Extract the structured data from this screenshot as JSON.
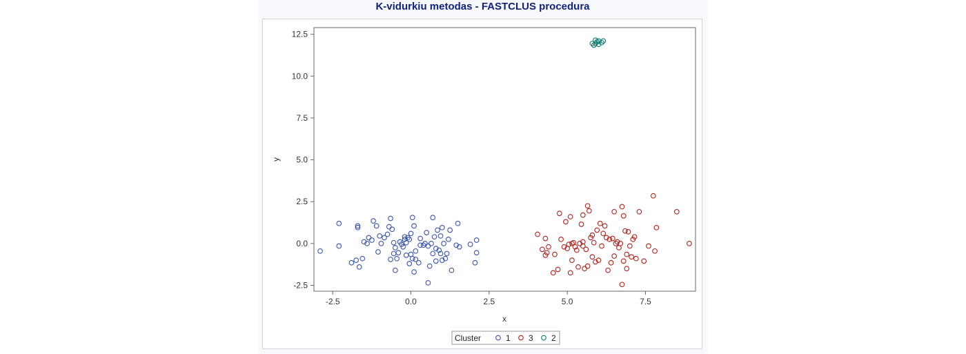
{
  "chart_data": {
    "type": "scatter",
    "title": "K-vidurkiu metodas - FASTCLUS procedura",
    "xlabel": "x",
    "ylabel": "y",
    "xlim": [
      -3.1,
      9.1
    ],
    "ylim": [
      -2.85,
      12.9
    ],
    "xticks": [
      -2.5,
      0.0,
      2.5,
      5.0,
      7.5
    ],
    "yticks": [
      -2.5,
      0.0,
      2.5,
      5.0,
      7.5,
      10.0,
      12.5
    ],
    "xtick_labels": [
      "-2.5",
      "0.0",
      "2.5",
      "5.0",
      "7.5"
    ],
    "ytick_labels": [
      "-2.5",
      "0.0",
      "2.5",
      "5.0",
      "7.5",
      "10.0",
      "12.5"
    ],
    "grid": false,
    "legend": {
      "title": "Cluster",
      "position": "bottom-center",
      "entries": [
        "1",
        "3",
        "2"
      ]
    },
    "series": [
      {
        "name": "1",
        "color": "#3a53a4",
        "marker": "circle-open",
        "points": [
          [
            -2.9,
            -0.45
          ],
          [
            -2.3,
            1.2
          ],
          [
            -2.3,
            -0.15
          ],
          [
            -1.9,
            -1.15
          ],
          [
            -1.75,
            -1.0
          ],
          [
            -1.7,
            0.95
          ],
          [
            -1.7,
            1.05
          ],
          [
            -1.65,
            -1.4
          ],
          [
            -1.55,
            -0.9
          ],
          [
            -1.5,
            0.1
          ],
          [
            -1.4,
            0.0
          ],
          [
            -1.35,
            0.35
          ],
          [
            -1.25,
            0.2
          ],
          [
            -1.2,
            1.35
          ],
          [
            -1.1,
            1.05
          ],
          [
            -1.05,
            -0.5
          ],
          [
            -1.0,
            0.45
          ],
          [
            -0.95,
            0.0
          ],
          [
            -0.85,
            0.35
          ],
          [
            -0.75,
            0.55
          ],
          [
            -0.7,
            1.0
          ],
          [
            -0.65,
            1.5
          ],
          [
            -0.65,
            -0.95
          ],
          [
            -0.6,
            0.85
          ],
          [
            -0.55,
            -0.6
          ],
          [
            -0.55,
            0.05
          ],
          [
            -0.5,
            -1.6
          ],
          [
            -0.5,
            -0.25
          ],
          [
            -0.45,
            -0.9
          ],
          [
            -0.4,
            -0.55
          ],
          [
            -0.35,
            0.1
          ],
          [
            -0.3,
            -0.05
          ],
          [
            -0.25,
            -0.2
          ],
          [
            -0.2,
            0.25
          ],
          [
            -0.2,
            0.4
          ],
          [
            -0.15,
            0.05
          ],
          [
            -0.15,
            -0.7
          ],
          [
            -0.1,
            0.35
          ],
          [
            -0.05,
            0.25
          ],
          [
            -0.05,
            -1.2
          ],
          [
            0.0,
            0.6
          ],
          [
            0.0,
            -0.65
          ],
          [
            0.05,
            -0.9
          ],
          [
            0.05,
            1.55
          ],
          [
            0.1,
            -1.7
          ],
          [
            0.1,
            1.05
          ],
          [
            0.15,
            -0.95
          ],
          [
            0.15,
            -0.45
          ],
          [
            0.25,
            -1.15
          ],
          [
            0.3,
            0.3
          ],
          [
            0.3,
            -0.1
          ],
          [
            0.4,
            -0.1
          ],
          [
            0.45,
            0.0
          ],
          [
            0.5,
            0.65
          ],
          [
            0.55,
            -0.15
          ],
          [
            0.55,
            -2.35
          ],
          [
            0.6,
            -1.35
          ],
          [
            0.65,
            0.0
          ],
          [
            0.7,
            -0.6
          ],
          [
            0.7,
            1.55
          ],
          [
            0.75,
            0.4
          ],
          [
            0.8,
            -0.3
          ],
          [
            0.8,
            -1.05
          ],
          [
            0.85,
            0.8
          ],
          [
            0.9,
            -0.4
          ],
          [
            0.95,
            0.45
          ],
          [
            0.95,
            -0.6
          ],
          [
            1.0,
            0.95
          ],
          [
            1.0,
            -1.0
          ],
          [
            1.05,
            0.0
          ],
          [
            1.1,
            -0.9
          ],
          [
            1.15,
            -0.6
          ],
          [
            1.2,
            0.25
          ],
          [
            1.25,
            0.8
          ],
          [
            1.3,
            -1.6
          ],
          [
            1.45,
            -0.1
          ],
          [
            1.5,
            1.2
          ],
          [
            1.55,
            -0.2
          ],
          [
            1.9,
            -0.05
          ],
          [
            2.05,
            -1.15
          ],
          [
            2.1,
            0.2
          ],
          [
            2.1,
            -0.55
          ]
        ]
      },
      {
        "name": "3",
        "color": "#a8231c",
        "marker": "circle-open",
        "points": [
          [
            4.05,
            0.55
          ],
          [
            4.2,
            -0.35
          ],
          [
            4.3,
            0.3
          ],
          [
            4.3,
            -0.7
          ],
          [
            4.35,
            -0.55
          ],
          [
            4.4,
            -0.2
          ],
          [
            4.55,
            -1.75
          ],
          [
            4.6,
            -0.65
          ],
          [
            4.7,
            -1.55
          ],
          [
            4.75,
            1.8
          ],
          [
            4.8,
            0.25
          ],
          [
            4.9,
            -0.2
          ],
          [
            4.95,
            1.3
          ],
          [
            5.0,
            -0.3
          ],
          [
            5.05,
            -0.05
          ],
          [
            5.1,
            1.6
          ],
          [
            5.1,
            -1.75
          ],
          [
            5.15,
            0.0
          ],
          [
            5.15,
            -1.0
          ],
          [
            5.2,
            0.05
          ],
          [
            5.25,
            -0.2
          ],
          [
            5.3,
            -0.4
          ],
          [
            5.35,
            -1.4
          ],
          [
            5.4,
            0.0
          ],
          [
            5.45,
            1.15
          ],
          [
            5.5,
            1.7
          ],
          [
            5.5,
            -0.15
          ],
          [
            5.5,
            0.1
          ],
          [
            5.55,
            -1.5
          ],
          [
            5.6,
            -0.35
          ],
          [
            5.65,
            2.25
          ],
          [
            5.65,
            -1.35
          ],
          [
            5.7,
            1.95
          ],
          [
            5.75,
            0.35
          ],
          [
            5.8,
            0.5
          ],
          [
            5.8,
            -0.8
          ],
          [
            5.85,
            0.05
          ],
          [
            5.9,
            -1.1
          ],
          [
            5.95,
            0.8
          ],
          [
            6.0,
            -1.0
          ],
          [
            6.05,
            1.2
          ],
          [
            6.1,
            -0.15
          ],
          [
            6.15,
            0.6
          ],
          [
            6.2,
            1.05
          ],
          [
            6.25,
            0.35
          ],
          [
            6.3,
            -1.6
          ],
          [
            6.35,
            0.25
          ],
          [
            6.4,
            -1.15
          ],
          [
            6.45,
            0.3
          ],
          [
            6.5,
            1.9
          ],
          [
            6.5,
            -0.75
          ],
          [
            6.55,
            0.0
          ],
          [
            6.6,
            0.1
          ],
          [
            6.65,
            -0.25
          ],
          [
            6.7,
            0.0
          ],
          [
            6.75,
            2.2
          ],
          [
            6.75,
            -2.45
          ],
          [
            6.8,
            1.65
          ],
          [
            6.8,
            -1.05
          ],
          [
            6.85,
            0.75
          ],
          [
            6.9,
            -0.65
          ],
          [
            6.9,
            -1.5
          ],
          [
            6.95,
            0.7
          ],
          [
            7.0,
            -0.15
          ],
          [
            7.05,
            -0.8
          ],
          [
            7.1,
            0.25
          ],
          [
            7.15,
            0.4
          ],
          [
            7.2,
            -0.9
          ],
          [
            7.3,
            1.9
          ],
          [
            7.45,
            -1.05
          ],
          [
            7.6,
            -0.15
          ],
          [
            7.75,
            2.85
          ],
          [
            7.8,
            -0.45
          ],
          [
            7.85,
            0.95
          ],
          [
            8.5,
            1.9
          ],
          [
            8.9,
            0.0
          ]
        ]
      },
      {
        "name": "2",
        "color": "#0f7a72",
        "marker": "circle-open",
        "points": [
          [
            5.8,
            11.95
          ],
          [
            5.85,
            11.85
          ],
          [
            5.9,
            12.15
          ],
          [
            5.9,
            11.95
          ],
          [
            5.95,
            12.05
          ],
          [
            6.0,
            11.9
          ],
          [
            6.0,
            12.1
          ],
          [
            6.1,
            12.0
          ],
          [
            6.15,
            12.1
          ]
        ]
      }
    ]
  }
}
